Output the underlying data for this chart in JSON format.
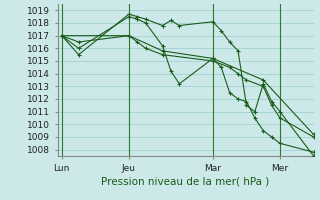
{
  "background_color": "#cce8e8",
  "grid_color": "#99cccc",
  "line_color": "#1a5c1a",
  "title": "Pression niveau de la mer( hPa )",
  "ylim": [
    1007.5,
    1019.5
  ],
  "yticks": [
    1008,
    1009,
    1010,
    1011,
    1012,
    1013,
    1014,
    1015,
    1016,
    1017,
    1018,
    1019
  ],
  "day_labels": [
    "Lun",
    "Jeu",
    "Mar",
    "Mer"
  ],
  "day_positions": [
    0,
    8,
    18,
    26
  ],
  "xlim": [
    -0.5,
    30
  ],
  "series": [
    {
      "x": [
        0,
        2,
        8,
        9,
        10,
        12,
        13,
        14,
        18,
        19,
        20,
        21,
        22,
        23,
        24,
        25,
        26,
        30
      ],
      "y": [
        1017.0,
        1015.5,
        1018.7,
        1018.5,
        1018.3,
        1017.8,
        1018.2,
        1017.8,
        1018.1,
        1017.4,
        1016.5,
        1015.8,
        1011.5,
        1011.0,
        1013.2,
        1011.8,
        1011.0,
        1007.5
      ]
    },
    {
      "x": [
        0,
        2,
        8,
        9,
        10,
        12,
        13,
        14,
        18,
        19,
        20,
        21,
        22,
        23,
        24,
        25,
        26,
        30
      ],
      "y": [
        1017.0,
        1016.0,
        1018.5,
        1018.3,
        1018.0,
        1016.2,
        1014.2,
        1013.2,
        1015.2,
        1014.5,
        1012.5,
        1012.0,
        1011.8,
        1010.5,
        1009.5,
        1009.0,
        1008.5,
        1007.8
      ]
    },
    {
      "x": [
        0,
        2,
        8,
        9,
        10,
        12,
        18,
        20,
        21,
        22,
        24,
        25,
        26,
        30
      ],
      "y": [
        1017.0,
        1016.5,
        1017.0,
        1016.5,
        1016.0,
        1015.5,
        1015.0,
        1014.5,
        1014.0,
        1013.5,
        1013.0,
        1011.5,
        1010.5,
        1009.0
      ]
    },
    {
      "x": [
        0,
        8,
        12,
        18,
        24,
        30
      ],
      "y": [
        1017.0,
        1017.0,
        1015.8,
        1015.2,
        1013.5,
        1009.2
      ]
    }
  ]
}
